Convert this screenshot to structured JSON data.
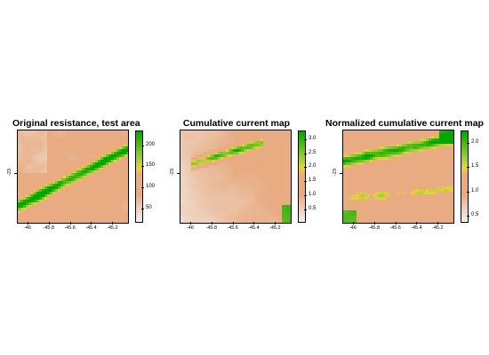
{
  "chart_data": [
    {
      "type": "heatmap",
      "title": "Original resistance, test area",
      "x_ticks": [
        "-46",
        "-45.8",
        "-45.6",
        "-45.4",
        "-45.2"
      ],
      "y_ticks": [
        "-23"
      ],
      "xlim": [
        -46.1,
        -45.06
      ],
      "legend": {
        "ticks": [
          "50",
          "100",
          "150",
          "200"
        ],
        "range": [
          20,
          235
        ]
      },
      "colors": {
        "low": "#f2f2f2",
        "mid": "#e8ab82",
        "yellow": "#e6d33a",
        "high": "#00a600"
      }
    },
    {
      "type": "heatmap",
      "title": "Cumulative current map",
      "x_ticks": [
        "-46",
        "-45.8",
        "-45.6",
        "-45.4",
        "-45.2"
      ],
      "y_ticks": [
        "-23"
      ],
      "xlim": [
        -46.1,
        -45.06
      ],
      "legend": {
        "ticks": [
          "0.5",
          "1.0",
          "1.5",
          "2.0",
          "2.5",
          "3.0"
        ],
        "range": [
          0.1,
          3.3
        ]
      },
      "colors": {
        "low": "#f2f2f2",
        "mid": "#e8ab82",
        "yellow": "#e6d33a",
        "high": "#00a600"
      }
    },
    {
      "type": "heatmap",
      "title": "Normalized cumulative current map",
      "x_ticks": [
        "-46",
        "-45.8",
        "-45.6",
        "-45.4",
        "-45.2"
      ],
      "y_ticks": [
        "-23"
      ],
      "xlim": [
        -46.1,
        -45.06
      ],
      "legend": {
        "ticks": [
          "0.5",
          "1.0",
          "1.5",
          "2.0"
        ],
        "range": [
          0.4,
          2.25
        ]
      },
      "colors": {
        "low": "#f2f2f2",
        "mid": "#e8ab82",
        "yellow": "#e6d33a",
        "high": "#00a600"
      }
    }
  ]
}
